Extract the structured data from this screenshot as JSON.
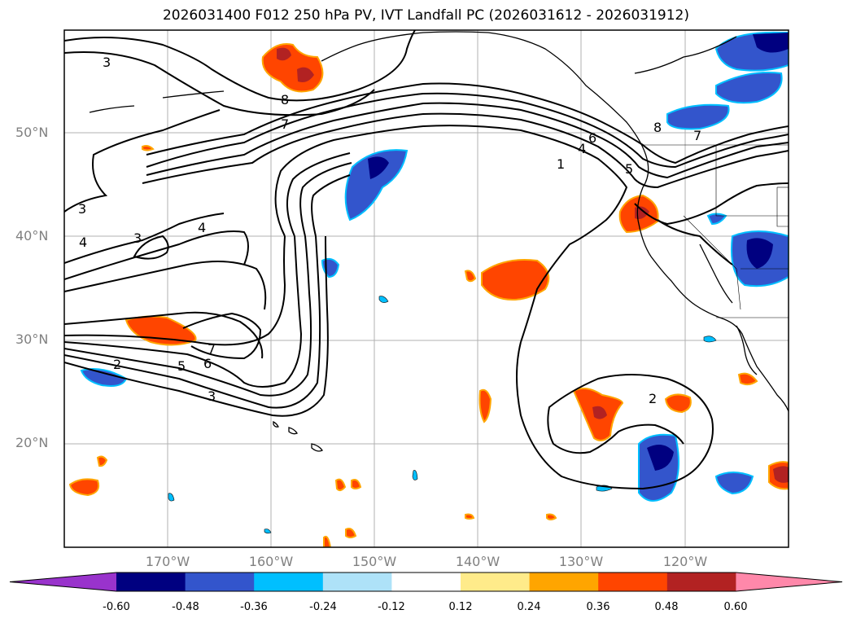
{
  "title": "2026031400 F012 250 hPa PV, IVT Landfall PC (2026031612 - 2026031912)",
  "map": {
    "lat_labels": [
      "50°N",
      "40°N",
      "30°N",
      "20°N"
    ],
    "lon_labels": [
      "170°W",
      "160°W",
      "150°W",
      "140°W",
      "130°W",
      "120°W"
    ],
    "contour_labels": [
      "3",
      "8",
      "7",
      "6",
      "4",
      "1",
      "5",
      "7",
      "8",
      "3",
      "4",
      "3",
      "4",
      "7",
      "6",
      "5",
      "3",
      "2",
      "2"
    ]
  },
  "colorbar": {
    "ticks": [
      "-0.60",
      "-0.48",
      "-0.36",
      "-0.24",
      "-0.12",
      "0.12",
      "0.24",
      "0.36",
      "0.48",
      "0.60"
    ],
    "colors": [
      "#9933cc",
      "#000080",
      "#3355cc",
      "#00bfff",
      "#aee2f8",
      "#ffffff",
      "#ffeb8a",
      "#ffa500",
      "#ff4500",
      "#b22222",
      "#ff88aa"
    ]
  }
}
